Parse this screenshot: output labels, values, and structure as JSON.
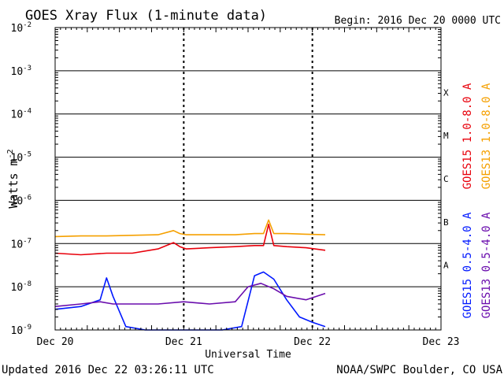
{
  "chart_data": {
    "type": "line",
    "title": "GOES Xray Flux (1-minute data)",
    "begin_label": "Begin:  2016 Dec 20 0000 UTC",
    "xlabel": "Universal Time",
    "ylabel": "Watts m",
    "ylabel_superscript": "-2",
    "yscale": "log",
    "ylim": [
      1e-09,
      0.01
    ],
    "y_ticks": [
      {
        "mantissa": "10",
        "exp": "-9",
        "value": 1e-09
      },
      {
        "mantissa": "10",
        "exp": "-8",
        "value": 1e-08
      },
      {
        "mantissa": "10",
        "exp": "-7",
        "value": 1e-07
      },
      {
        "mantissa": "10",
        "exp": "-6",
        "value": 1e-06
      },
      {
        "mantissa": "10",
        "exp": "-5",
        "value": 1e-05
      },
      {
        "mantissa": "10",
        "exp": "-4",
        "value": 0.0001
      },
      {
        "mantissa": "10",
        "exp": "-3",
        "value": 0.001
      },
      {
        "mantissa": "10",
        "exp": "-2",
        "value": 0.01
      }
    ],
    "x_range_days": [
      0,
      3
    ],
    "x_ticks": [
      {
        "label": "Dec 20",
        "day": 0
      },
      {
        "label": "Dec 21",
        "day": 1
      },
      {
        "label": "Dec 22",
        "day": 2
      },
      {
        "label": "Dec 23",
        "day": 3
      }
    ],
    "flare_classes": [
      {
        "label": "A",
        "lower": 1e-08
      },
      {
        "label": "B",
        "lower": 1e-07
      },
      {
        "label": "C",
        "lower": 1e-06
      },
      {
        "label": "M",
        "lower": 1e-05
      },
      {
        "label": "X",
        "lower": 0.0001
      }
    ],
    "series": [
      {
        "name": "GOES15 1.0-8.0 A",
        "color": "#e8000b",
        "x": [
          0.0,
          0.2,
          0.4,
          0.6,
          0.8,
          0.92,
          0.97,
          1.02,
          1.2,
          1.4,
          1.55,
          1.62,
          1.66,
          1.7,
          1.8,
          1.95,
          2.1
        ],
        "y": [
          6e-08,
          5.5e-08,
          6e-08,
          6e-08,
          7.5e-08,
          1.05e-07,
          8.5e-08,
          7.5e-08,
          8e-08,
          8.5e-08,
          9e-08,
          9e-08,
          2.8e-07,
          9e-08,
          8.5e-08,
          8e-08,
          7e-08
        ]
      },
      {
        "name": "GOES13 1.0-8.0 A",
        "color": "#f5a000",
        "x": [
          0.0,
          0.2,
          0.4,
          0.6,
          0.8,
          0.92,
          0.97,
          1.02,
          1.2,
          1.4,
          1.55,
          1.62,
          1.66,
          1.7,
          1.8,
          1.95,
          2.1
        ],
        "y": [
          1.45e-07,
          1.5e-07,
          1.5e-07,
          1.55e-07,
          1.6e-07,
          2e-07,
          1.7e-07,
          1.6e-07,
          1.6e-07,
          1.6e-07,
          1.7e-07,
          1.7e-07,
          3.5e-07,
          1.7e-07,
          1.7e-07,
          1.65e-07,
          1.6e-07
        ]
      },
      {
        "name": "GOES15 0.5-4.0 A",
        "color": "#0018ff",
        "x": [
          0.0,
          0.2,
          0.35,
          0.4,
          0.45,
          0.55,
          0.7,
          0.9,
          1.1,
          1.3,
          1.45,
          1.55,
          1.62,
          1.7,
          1.8,
          1.9,
          2.0,
          2.1
        ],
        "y": [
          3e-09,
          3.5e-09,
          5e-09,
          1.6e-08,
          6e-09,
          1.2e-09,
          1e-09,
          1e-09,
          1e-09,
          1e-09,
          1.2e-09,
          1.8e-08,
          2.2e-08,
          1.5e-08,
          5e-09,
          2e-09,
          1.5e-09,
          1.2e-09
        ]
      },
      {
        "name": "GOES13 0.5-4.0 A",
        "color": "#6a0dad",
        "x": [
          0.0,
          0.2,
          0.35,
          0.45,
          0.6,
          0.8,
          1.0,
          1.2,
          1.4,
          1.5,
          1.6,
          1.7,
          1.8,
          1.95,
          2.1
        ],
        "y": [
          3.5e-09,
          4e-09,
          4.5e-09,
          4e-09,
          4e-09,
          4e-09,
          4.5e-09,
          4e-09,
          4.5e-09,
          1e-08,
          1.2e-08,
          9e-09,
          6e-09,
          5e-09,
          7e-09
        ]
      }
    ]
  },
  "footer": {
    "updated": "Updated 2016 Dec 22 03:26:11 UTC",
    "source": "NOAA/SWPC Boulder, CO USA"
  }
}
